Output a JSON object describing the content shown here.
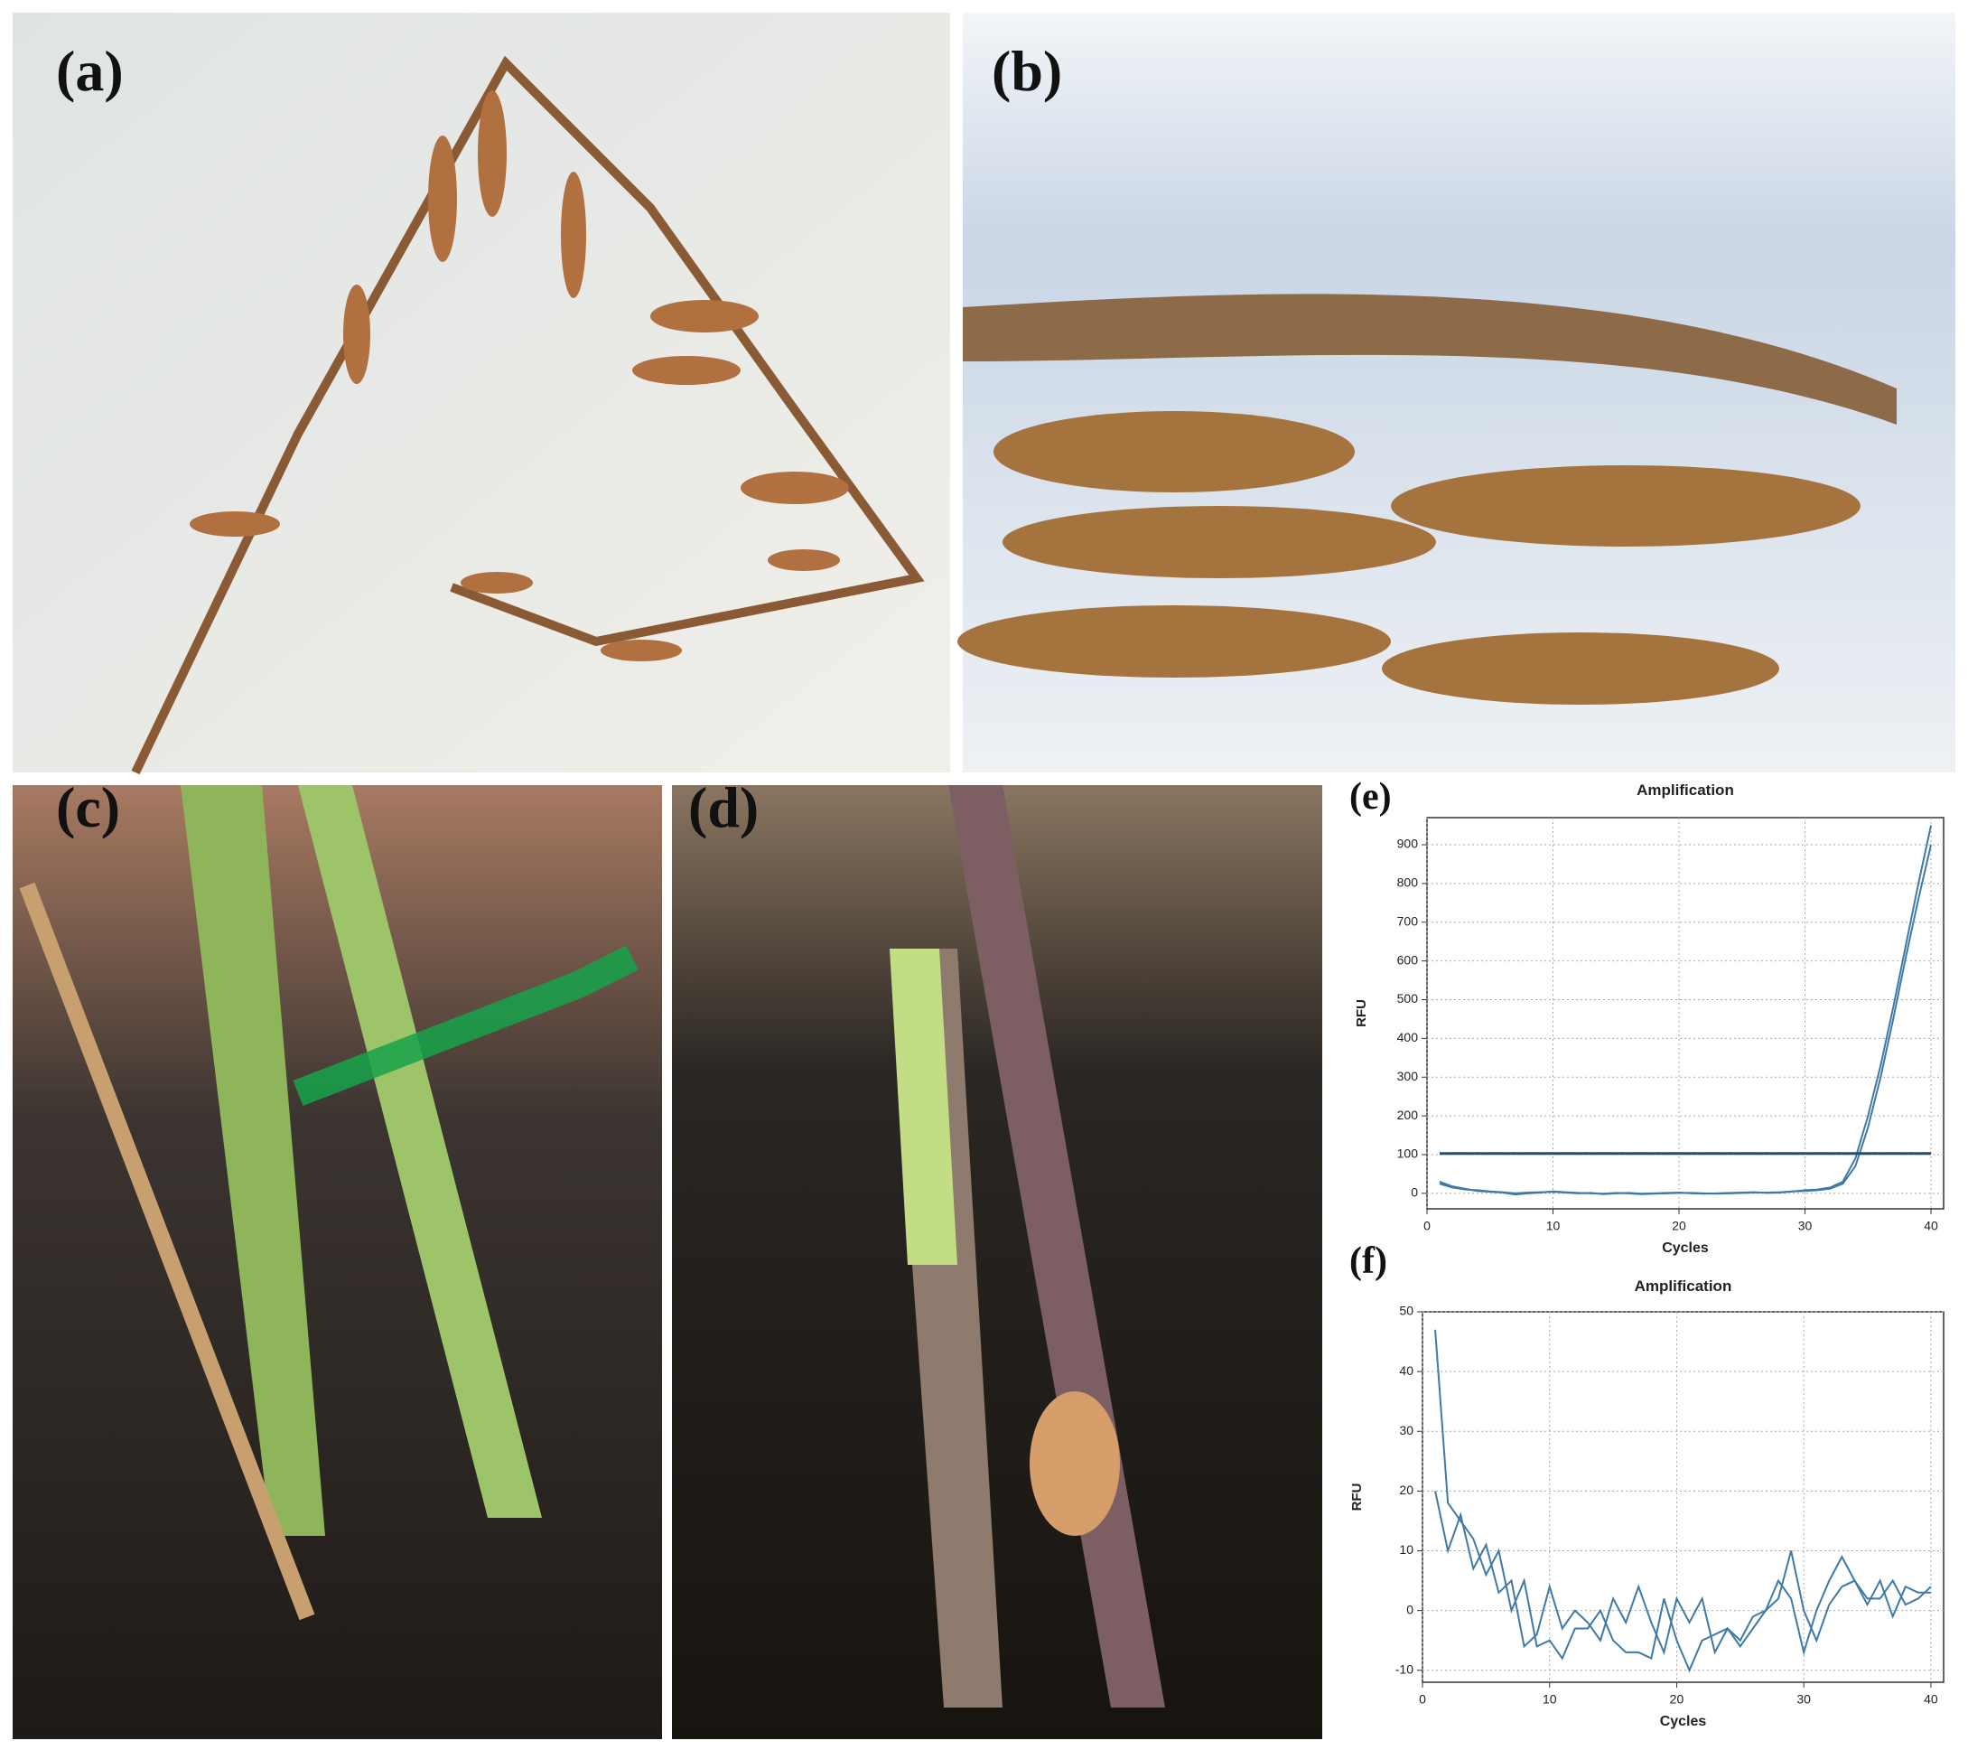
{
  "panel_labels": [
    "(a)",
    "(b)",
    "(c)",
    "(d)",
    "(e)",
    "(f)"
  ],
  "chart_data": [
    {
      "type": "line",
      "title": "Amplification",
      "x_label": "Cycles",
      "y_label": "RFU",
      "x": [
        1,
        2,
        3,
        4,
        5,
        6,
        7,
        8,
        9,
        10,
        11,
        12,
        13,
        14,
        15,
        16,
        17,
        18,
        19,
        20,
        21,
        22,
        23,
        24,
        25,
        26,
        27,
        28,
        29,
        30,
        31,
        32,
        33,
        34,
        35,
        36,
        37,
        38,
        39,
        40
      ],
      "xlim": [
        0,
        41
      ],
      "ylim": [
        -40,
        970
      ],
      "xticks": [
        0,
        10,
        20,
        30,
        40
      ],
      "yticks": [
        0,
        100,
        200,
        300,
        400,
        500,
        600,
        700,
        800,
        900
      ],
      "grid": true,
      "series": [
        {
          "color": "#3f7aa6",
          "values": [
            25,
            15,
            10,
            8,
            5,
            3,
            0,
            2,
            3,
            4,
            2,
            0,
            1,
            -2,
            0,
            1,
            -1,
            0,
            1,
            2,
            0,
            -1,
            0,
            1,
            2,
            3,
            1,
            2,
            5,
            8,
            10,
            15,
            30,
            90,
            200,
            330,
            480,
            640,
            800,
            950
          ]
        },
        {
          "color": "#3f7aa6",
          "values": [
            30,
            18,
            12,
            6,
            4,
            2,
            -3,
            0,
            2,
            5,
            3,
            1,
            0,
            -1,
            1,
            0,
            -2,
            -1,
            0,
            1,
            1,
            0,
            -1,
            0,
            1,
            2,
            2,
            3,
            5,
            6,
            8,
            12,
            25,
            70,
            170,
            300,
            450,
            610,
            760,
            900
          ]
        },
        {
          "color": "#1f4e79",
          "line_width": 3,
          "x": [
            1,
            40
          ],
          "values": [
            103,
            103
          ]
        }
      ]
    },
    {
      "type": "line",
      "title": "Amplification",
      "x_label": "Cycles",
      "y_label": "RFU",
      "x": [
        1,
        2,
        3,
        4,
        5,
        6,
        7,
        8,
        9,
        10,
        11,
        12,
        13,
        14,
        15,
        16,
        17,
        18,
        19,
        20,
        21,
        22,
        23,
        24,
        25,
        26,
        27,
        28,
        29,
        30,
        31,
        32,
        33,
        34,
        35,
        36,
        37,
        38,
        39,
        40
      ],
      "xlim": [
        0,
        41
      ],
      "ylim": [
        -12,
        50
      ],
      "xticks": [
        0,
        10,
        20,
        30,
        40
      ],
      "yticks": [
        -10,
        0,
        10,
        20,
        30,
        40,
        50
      ],
      "grid": true,
      "series": [
        {
          "color": "#3f7aa6",
          "values": [
            47,
            18,
            15,
            12,
            6,
            10,
            0,
            5,
            -6,
            -5,
            -8,
            -3,
            -3,
            0,
            -5,
            -7,
            -7,
            -8,
            2,
            -5,
            -10,
            -5,
            -4,
            -3,
            -5,
            -1,
            0,
            5,
            2,
            -7,
            0,
            5,
            9,
            5,
            2,
            2,
            5,
            1,
            2,
            4
          ]
        },
        {
          "color": "#3f7aa6",
          "values": [
            20,
            10,
            16,
            7,
            11,
            3,
            5,
            -6,
            -4,
            4,
            -3,
            0,
            -2,
            -5,
            2,
            -2,
            4,
            -2,
            -7,
            2,
            -2,
            2,
            -7,
            -3,
            -6,
            -3,
            0,
            2,
            10,
            0,
            -5,
            1,
            4,
            5,
            1,
            5,
            -1,
            4,
            3,
            3
          ]
        }
      ]
    }
  ]
}
